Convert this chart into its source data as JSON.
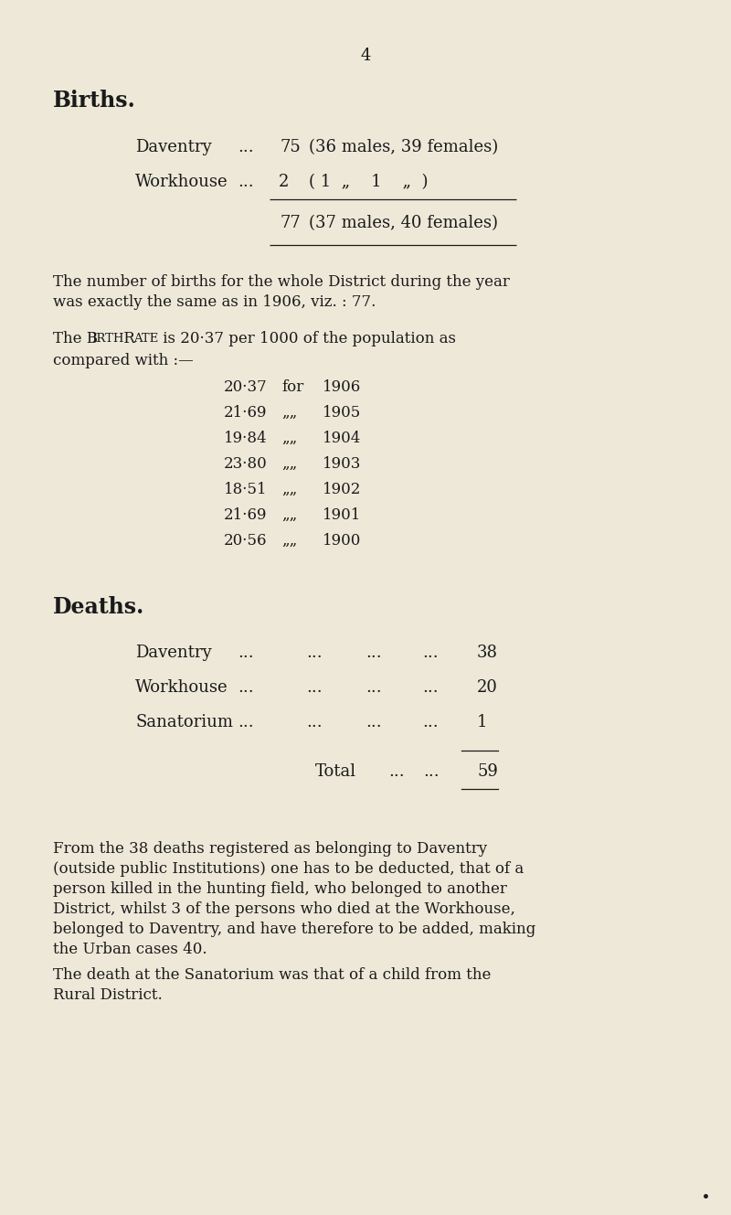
{
  "bg_color": "#ede8d8",
  "text_color": "#1a1a1a",
  "page_number": "4",
  "section1_title": "Births.",
  "birth_row1_label": "Daventry",
  "birth_row1_dots": "...",
  "birth_row1_value": "75",
  "birth_row1_detail": "(36 males, 39 females)",
  "birth_row2_label": "Workhouse",
  "birth_row2_dots": "...",
  "birth_row2_value": "2",
  "birth_row2_detail": "( 1  „    1    „  )",
  "births_total_value": "77",
  "births_total_detail": "(37 males, 40 females)",
  "para1_line1": "The number of births for the whole District during the year",
  "para1_line2": "was exactly the same as in 1906, viz. : 77.",
  "para2_line1a": "The B",
  "para2_line1b": "IRTH",
  "para2_line1c": " R",
  "para2_line1d": "ATE",
  "para2_line1e": " is 20·37 per 1000 of the population as",
  "para2_line2": "compared with :—",
  "birth_rates": [
    {
      "rate": "20·37",
      "word": "for",
      "year": "1906"
    },
    {
      "rate": "21·69",
      "word": "„„",
      "year": "1905"
    },
    {
      "rate": "19·84",
      "word": "„„",
      "year": "1904"
    },
    {
      "rate": "23·80",
      "word": "„„",
      "year": "1903"
    },
    {
      "rate": "18·51",
      "word": "„„",
      "year": "1902"
    },
    {
      "rate": "21·69",
      "word": "„„",
      "year": "1901"
    },
    {
      "rate": "20·56",
      "word": "„„",
      "year": "1900"
    }
  ],
  "section2_title": "Deaths.",
  "death_row1_label": "Daventry",
  "death_row1_value": "38",
  "death_row2_label": "Workhouse",
  "death_row2_value": "20",
  "death_row3_label": "Sanatorium",
  "death_row3_value": "1",
  "deaths_total_label": "Total",
  "deaths_total_value": "59",
  "para3_line1": "From the 38 deaths registered as belonging to Daventry",
  "para3_line2": "(outside public Institutions) one has to be deducted, that of a",
  "para3_line3": "person killed in the hunting field, who belonged to another",
  "para3_line4": "District, whilst 3 of the persons who died at the Workhouse,",
  "para3_line5": "belonged to Daventry, and have therefore to be added, making",
  "para3_line6": "the Urban cases 40.",
  "para4_line1": "The death at the Sanatorium was that of a child from the",
  "para4_line2": "Rural District."
}
